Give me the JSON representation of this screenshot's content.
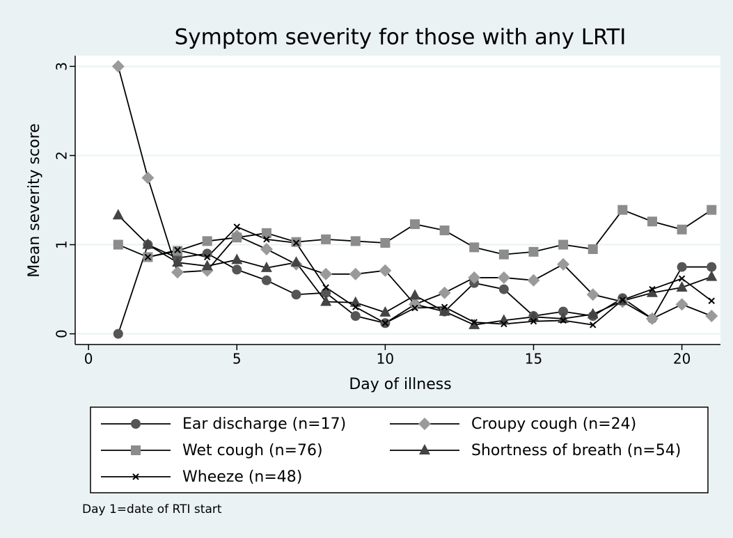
{
  "chart_data": {
    "type": "line",
    "title": "Symptom severity for those with any LRTI",
    "xlabel": "Day of illness",
    "ylabel": "Mean severity score",
    "note": "Day 1=date of RTI start",
    "x": [
      1,
      2,
      3,
      4,
      5,
      6,
      7,
      8,
      9,
      10,
      11,
      12,
      13,
      14,
      15,
      16,
      17,
      18,
      19,
      20,
      21
    ],
    "series": [
      {
        "name": "Ear discharge (n=17)",
        "color": "#555555",
        "symbol": "circle",
        "values": [
          0,
          1.0,
          0.85,
          0.9,
          0.72,
          0.6,
          0.44,
          0.46,
          0.2,
          0.12,
          0.33,
          0.25,
          0.57,
          0.5,
          0.2,
          0.25,
          0.2,
          0.4,
          0.17,
          0.75,
          0.75
        ]
      },
      {
        "name": "Croupy cough (n=24)",
        "color": "#9a9a9a",
        "symbol": "diamond",
        "values": [
          3,
          1.75,
          0.69,
          0.71,
          1.1,
          0.95,
          0.78,
          0.67,
          0.67,
          0.71,
          0.33,
          0.46,
          0.63,
          0.63,
          0.6,
          0.78,
          0.44,
          0.36,
          0.17,
          0.33,
          0.2
        ]
      },
      {
        "name": "Wet cough (n=76)",
        "color": "#8c8c8c",
        "symbol": "square",
        "values": [
          1.0,
          0.86,
          0.93,
          1.04,
          1.08,
          1.13,
          1.03,
          1.06,
          1.04,
          1.02,
          1.23,
          1.16,
          0.97,
          0.89,
          0.92,
          1.0,
          0.95,
          1.39,
          1.26,
          1.17,
          1.39
        ]
      },
      {
        "name": "Shortness of breath (n=54)",
        "color": "#444444",
        "symbol": "triangle",
        "values": [
          1.33,
          1.0,
          0.8,
          0.76,
          0.83,
          0.74,
          0.8,
          0.36,
          0.35,
          0.24,
          0.43,
          0.25,
          0.1,
          0.15,
          0.19,
          0.17,
          0.22,
          0.37,
          0.46,
          0.52,
          0.64
        ]
      },
      {
        "name": "Wheeze (n=48)",
        "color": "#000000",
        "symbol": "x",
        "values": [
          null,
          0.86,
          0.94,
          0.86,
          1.2,
          1.06,
          1.02,
          0.52,
          0.3,
          0.12,
          0.29,
          0.3,
          0.13,
          0.11,
          0.14,
          0.15,
          0.1,
          0.38,
          0.5,
          0.62,
          0.37
        ]
      }
    ],
    "xlim": [
      -0.45,
      21.3
    ],
    "xticks": [
      0,
      5,
      10,
      15,
      20
    ],
    "ylim": [
      -0.12,
      3.12
    ],
    "yticks": [
      0,
      1,
      2,
      3
    ],
    "grid": true
  }
}
